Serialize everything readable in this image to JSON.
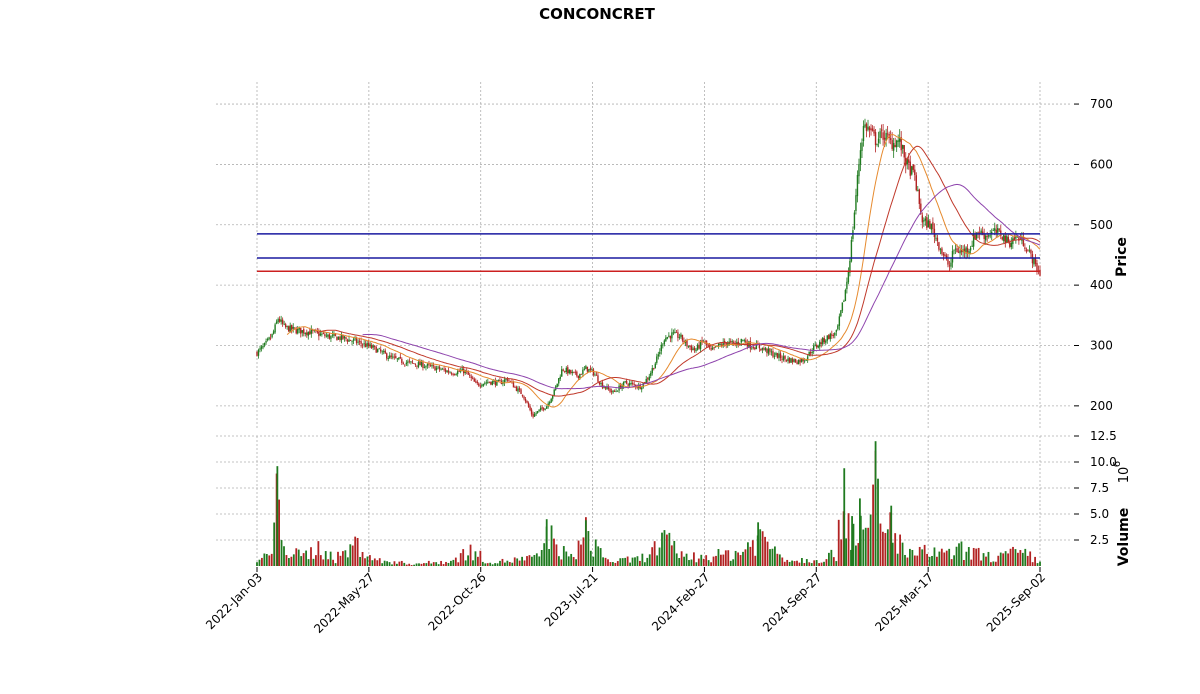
{
  "chart_data": {
    "type": "candlestick",
    "title": "CONCONCRET",
    "price_axis": {
      "label": "Price",
      "ylim": [
        160,
        715
      ],
      "ticks": [
        200,
        300,
        400,
        500,
        600,
        700
      ]
    },
    "volume_axis": {
      "label": "Volume",
      "multiplier_label": "10",
      "multiplier_exp": "6",
      "ylim": [
        0,
        12.5
      ],
      "ticks": [
        "2.5",
        "5.0",
        "7.5",
        "10.0",
        "12.5"
      ]
    },
    "x_tick_labels": [
      "2022-Jan-03",
      "2022-May-27",
      "2022-Oct-26",
      "2023-Jul-21",
      "2024-Feb-27",
      "2024-Sep-27",
      "2025-Mar-17",
      "2025-Sep-02"
    ],
    "grid": true,
    "horizontal_lines": [
      {
        "value": 485,
        "color": "#1a1aa0"
      },
      {
        "value": 445,
        "color": "#1a1aa0"
      },
      {
        "value": 423,
        "color": "#cc2020"
      }
    ],
    "price_path": [
      [
        0,
        288
      ],
      [
        0.01,
        300
      ],
      [
        0.02,
        318
      ],
      [
        0.027,
        345
      ],
      [
        0.035,
        330
      ],
      [
        0.05,
        325
      ],
      [
        0.07,
        322
      ],
      [
        0.09,
        315
      ],
      [
        0.11,
        312
      ],
      [
        0.13,
        305
      ],
      [
        0.15,
        295
      ],
      [
        0.17,
        280
      ],
      [
        0.19,
        272
      ],
      [
        0.21,
        268
      ],
      [
        0.23,
        262
      ],
      [
        0.25,
        255
      ],
      [
        0.265,
        258
      ],
      [
        0.28,
        235
      ],
      [
        0.295,
        240
      ],
      [
        0.31,
        238
      ],
      [
        0.32,
        245
      ],
      [
        0.33,
        230
      ],
      [
        0.34,
        218
      ],
      [
        0.352,
        183
      ],
      [
        0.36,
        192
      ],
      [
        0.37,
        200
      ],
      [
        0.38,
        225
      ],
      [
        0.39,
        262
      ],
      [
        0.4,
        255
      ],
      [
        0.41,
        250
      ],
      [
        0.42,
        262
      ],
      [
        0.43,
        255
      ],
      [
        0.44,
        235
      ],
      [
        0.455,
        222
      ],
      [
        0.47,
        238
      ],
      [
        0.49,
        232
      ],
      [
        0.5,
        248
      ],
      [
        0.51,
        275
      ],
      [
        0.52,
        312
      ],
      [
        0.53,
        318
      ],
      [
        0.54,
        315
      ],
      [
        0.55,
        300
      ],
      [
        0.56,
        292
      ],
      [
        0.57,
        308
      ],
      [
        0.58,
        290
      ],
      [
        0.59,
        300
      ],
      [
        0.6,
        305
      ],
      [
        0.61,
        302
      ],
      [
        0.62,
        310
      ],
      [
        0.63,
        300
      ],
      [
        0.64,
        298
      ],
      [
        0.65,
        292
      ],
      [
        0.66,
        285
      ],
      [
        0.67,
        280
      ],
      [
        0.68,
        276
      ],
      [
        0.69,
        274
      ],
      [
        0.7,
        278
      ],
      [
        0.71,
        295
      ],
      [
        0.72,
        305
      ],
      [
        0.73,
        315
      ],
      [
        0.74,
        320
      ],
      [
        0.745,
        350
      ],
      [
        0.75,
        380
      ],
      [
        0.755,
        420
      ],
      [
        0.76,
        480
      ],
      [
        0.77,
        620
      ],
      [
        0.775,
        665
      ],
      [
        0.78,
        660
      ],
      [
        0.79,
        640
      ],
      [
        0.8,
        650
      ],
      [
        0.81,
        635
      ],
      [
        0.82,
        640
      ],
      [
        0.83,
        600
      ],
      [
        0.84,
        580
      ],
      [
        0.845,
        540
      ],
      [
        0.85,
        505
      ],
      [
        0.86,
        500
      ],
      [
        0.87,
        470
      ],
      [
        0.88,
        440
      ],
      [
        0.885,
        430
      ],
      [
        0.89,
        460
      ],
      [
        0.9,
        455
      ],
      [
        0.91,
        462
      ],
      [
        0.92,
        490
      ],
      [
        0.93,
        482
      ],
      [
        0.94,
        488
      ],
      [
        0.95,
        485
      ],
      [
        0.96,
        470
      ],
      [
        0.97,
        480
      ],
      [
        0.98,
        470
      ],
      [
        0.985,
        455
      ],
      [
        0.99,
        445
      ],
      [
        0.995,
        430
      ],
      [
        1.0,
        420
      ]
    ],
    "moving_averages": [
      {
        "color": "#e68a2e",
        "window": 4
      },
      {
        "color": "#c0392b",
        "window": 8
      },
      {
        "color": "#8e44ad",
        "window": 14
      }
    ],
    "volume_profile": [
      [
        0,
        0.6
      ],
      [
        0.02,
        2.0
      ],
      [
        0.026,
        9.6
      ],
      [
        0.04,
        1.8
      ],
      [
        0.06,
        1.4
      ],
      [
        0.08,
        2.6
      ],
      [
        0.1,
        1.0
      ],
      [
        0.13,
        3.2
      ],
      [
        0.15,
        0.8
      ],
      [
        0.2,
        0.3
      ],
      [
        0.25,
        0.7
      ],
      [
        0.27,
        2.2
      ],
      [
        0.3,
        0.5
      ],
      [
        0.36,
        1.2
      ],
      [
        0.37,
        4.5
      ],
      [
        0.4,
        0.9
      ],
      [
        0.42,
        4.4
      ],
      [
        0.45,
        0.6
      ],
      [
        0.49,
        1.0
      ],
      [
        0.52,
        3.4
      ],
      [
        0.55,
        1.2
      ],
      [
        0.59,
        1.5
      ],
      [
        0.62,
        2.0
      ],
      [
        0.64,
        4.2
      ],
      [
        0.68,
        0.8
      ],
      [
        0.72,
        1.0
      ],
      [
        0.74,
        1.8
      ],
      [
        0.75,
        9.4
      ],
      [
        0.76,
        4.8
      ],
      [
        0.77,
        6.5
      ],
      [
        0.78,
        3.0
      ],
      [
        0.79,
        12.0
      ],
      [
        0.8,
        3.5
      ],
      [
        0.81,
        5.8
      ],
      [
        0.82,
        3.6
      ],
      [
        0.83,
        1.5
      ],
      [
        0.86,
        2.0
      ],
      [
        0.88,
        1.5
      ],
      [
        0.9,
        2.2
      ],
      [
        0.94,
        1.2
      ],
      [
        0.97,
        1.8
      ],
      [
        0.985,
        1.5
      ],
      [
        1.0,
        0.5
      ]
    ]
  }
}
